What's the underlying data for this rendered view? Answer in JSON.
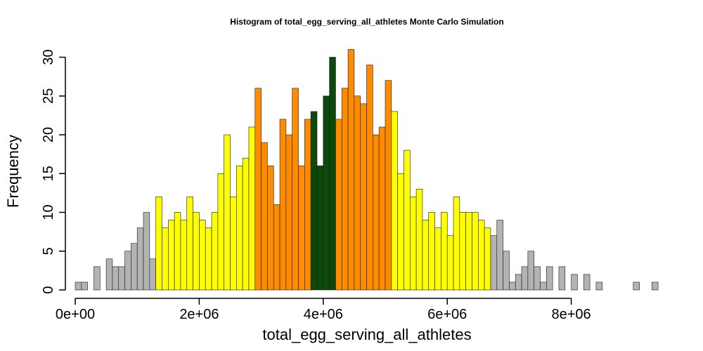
{
  "chart_data": {
    "type": "bar",
    "title": "Histogram of  total_egg_serving_all_athletes  Monte Carlo Simulation",
    "xlabel": "total_egg_serving_all_athletes",
    "ylabel": "Frequency",
    "xlim": [
      0,
      9400000
    ],
    "ylim": [
      0,
      31
    ],
    "bin_width": 100000,
    "bin_start": 0,
    "values": [
      1,
      1,
      0,
      3,
      0,
      4,
      3,
      3,
      5,
      6,
      8,
      10,
      4,
      12,
      8,
      9,
      10,
      9,
      12,
      10,
      9,
      8,
      10,
      15,
      20,
      12,
      16,
      17,
      21,
      26,
      19,
      16,
      11,
      22,
      20,
      26,
      16,
      22,
      23,
      16,
      25,
      30,
      22,
      26,
      31,
      25,
      24,
      29,
      20,
      21,
      27,
      23,
      15,
      18,
      12,
      13,
      9,
      10,
      8,
      10,
      7,
      12,
      10,
      10,
      10,
      9,
      8,
      7,
      9,
      5,
      1,
      2,
      3,
      5,
      3,
      1,
      3,
      0,
      3,
      0,
      2,
      0,
      2,
      0,
      1,
      0,
      0,
      0,
      0,
      0,
      1,
      0,
      0,
      1
    ],
    "color_classes": [
      "gray",
      "gray",
      "gray",
      "gray",
      "gray",
      "gray",
      "gray",
      "gray",
      "gray",
      "gray",
      "gray",
      "gray",
      "gray",
      "yellow",
      "yellow",
      "yellow",
      "yellow",
      "yellow",
      "yellow",
      "yellow",
      "yellow",
      "yellow",
      "yellow",
      "yellow",
      "yellow",
      "yellow",
      "yellow",
      "yellow",
      "yellow",
      "orange",
      "orange",
      "orange",
      "orange",
      "orange",
      "orange",
      "orange",
      "orange",
      "orange",
      "darkgreen",
      "darkgreen",
      "darkgreen",
      "darkgreen",
      "orange",
      "orange",
      "orange",
      "orange",
      "orange",
      "orange",
      "orange",
      "orange",
      "orange",
      "yellow",
      "yellow",
      "yellow",
      "yellow",
      "yellow",
      "yellow",
      "yellow",
      "yellow",
      "yellow",
      "yellow",
      "yellow",
      "yellow",
      "yellow",
      "yellow",
      "yellow",
      "yellow",
      "gray",
      "gray",
      "gray",
      "gray",
      "gray",
      "gray",
      "gray",
      "gray",
      "gray",
      "gray",
      "gray",
      "gray",
      "gray",
      "gray",
      "gray",
      "gray",
      "gray",
      "gray",
      "gray",
      "gray",
      "gray",
      "gray",
      "gray",
      "gray",
      "gray",
      "gray",
      "gray",
      "gray",
      "gray"
    ],
    "colors": {
      "gray": "#b3b3b3",
      "yellow": "#ffff00",
      "orange": "#ff8c00",
      "darkgreen": "#0b4a0b"
    },
    "x_ticks": [
      0,
      2000000,
      4000000,
      6000000,
      8000000
    ],
    "x_tick_labels": [
      "0e+00",
      "2e+06",
      "4e+06",
      "6e+06",
      "8e+06"
    ],
    "y_ticks": [
      0,
      5,
      10,
      15,
      20,
      25,
      30
    ],
    "y_tick_labels": [
      "0",
      "5",
      "10",
      "15",
      "20",
      "25",
      "30"
    ],
    "grid": false,
    "legend": "none"
  }
}
